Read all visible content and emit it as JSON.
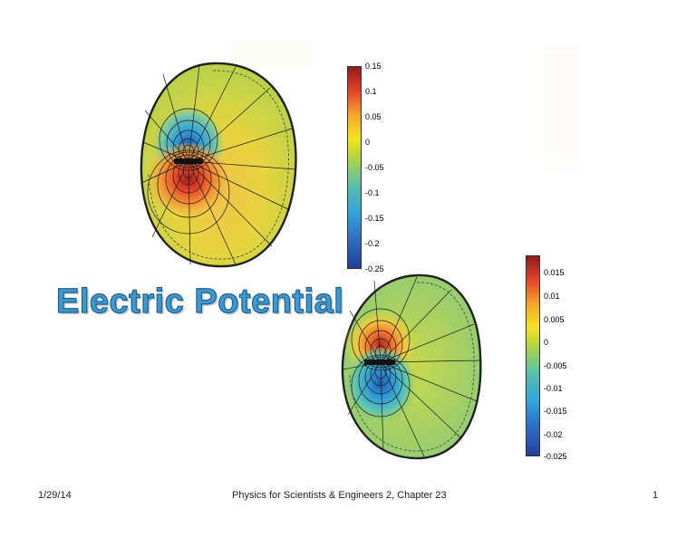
{
  "slide": {
    "title": "Electric Potential",
    "footer": {
      "date": "1/29/14",
      "course": "Physics for Scientists & Engineers 2, Chapter 23",
      "page": "1"
    }
  },
  "figures": [
    {
      "colorbar": {
        "ticks": [
          "0.15",
          "0.1",
          "0.05",
          "0",
          "-0.05",
          "-0.1",
          "-0.15",
          "-0.2",
          "-0.25"
        ]
      }
    },
    {
      "colorbar": {
        "ticks": [
          "0.015",
          "0.01",
          "0.005",
          "0",
          "-0.005",
          "-0.01",
          "-0.015",
          "-0.02",
          "-0.025"
        ]
      }
    }
  ]
}
